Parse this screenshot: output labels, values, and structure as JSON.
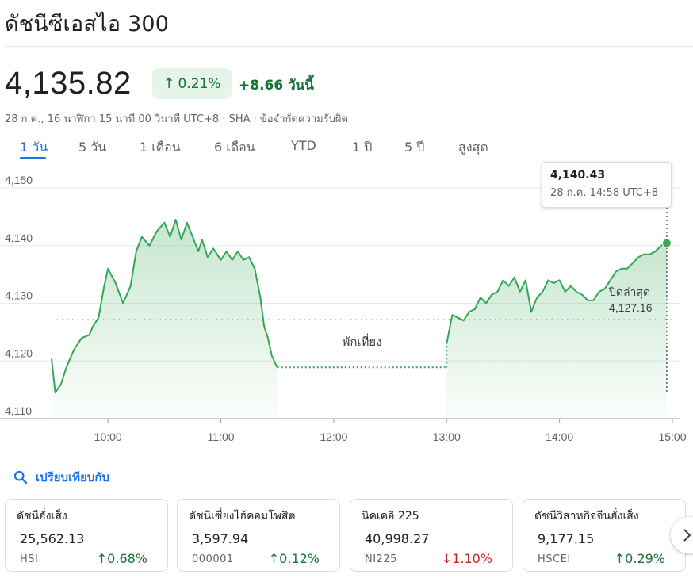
{
  "header": {
    "title": "ดัชนีซีเอสไอ 300"
  },
  "quote": {
    "price": "4,135.82",
    "pct_change": "0.21%",
    "abs_change": "+8.66 วันนี้",
    "meta_time": "28 ก.ค., 16 นาฬิกา 15 นาที 00 วินาที UTC+8 · SHA · ",
    "meta_disclaimer": "ข้อจำกัดความรับผิด"
  },
  "range_tabs": [
    "1 วัน",
    "5 วัน",
    "1 เดือน",
    "6 เดือน",
    "YTD",
    "1 ปี",
    "5 ปี",
    "สูงสุด"
  ],
  "active_tab": "1 วัน",
  "tooltip": {
    "value": "4,140.43",
    "time": "28 ก.ค. 14:58 UTC+8"
  },
  "chart_labels": {
    "lunch_break": "พักเที่ยง",
    "prev_close_label": "ปิดล่าสุด",
    "prev_close_value": "4,127.16"
  },
  "chart_data": {
    "type": "line",
    "y_ticks": [
      "4,150",
      "4,140",
      "4,130",
      "4,120",
      "4,110"
    ],
    "x_ticks": [
      "10:00",
      "11:00",
      "12:00",
      "13:00",
      "14:00",
      "15:00"
    ],
    "ylim": [
      4110,
      4150
    ],
    "xlim": [
      "09:30",
      "15:00"
    ],
    "previous_close": 4127.16,
    "grid": true,
    "color": "#34a853",
    "morning_series": [
      [
        "09:30",
        4120.4
      ],
      [
        "09:32",
        4114.5
      ],
      [
        "09:35",
        4116.0
      ],
      [
        "09:38",
        4119.0
      ],
      [
        "09:42",
        4122.0
      ],
      [
        "09:46",
        4124.0
      ],
      [
        "09:50",
        4124.5
      ],
      [
        "09:52",
        4126.0
      ],
      [
        "09:55",
        4127.5
      ],
      [
        "09:58",
        4133.0
      ],
      [
        "10:00",
        4136.0
      ],
      [
        "10:04",
        4133.5
      ],
      [
        "10:08",
        4130.0
      ],
      [
        "10:12",
        4133.0
      ],
      [
        "10:15",
        4139.0
      ],
      [
        "10:18",
        4141.5
      ],
      [
        "10:22",
        4140.0
      ],
      [
        "10:26",
        4142.5
      ],
      [
        "10:30",
        4144.0
      ],
      [
        "10:33",
        4141.5
      ],
      [
        "10:36",
        4144.5
      ],
      [
        "10:39",
        4141.0
      ],
      [
        "10:42",
        4144.0
      ],
      [
        "10:45",
        4141.5
      ],
      [
        "10:48",
        4139.0
      ],
      [
        "10:50",
        4141.0
      ],
      [
        "10:53",
        4138.0
      ],
      [
        "10:56",
        4139.5
      ],
      [
        "11:00",
        4137.5
      ],
      [
        "11:03",
        4139.0
      ],
      [
        "11:06",
        4137.5
      ],
      [
        "11:09",
        4139.0
      ],
      [
        "11:12",
        4137.5
      ],
      [
        "11:15",
        4138.0
      ],
      [
        "11:18",
        4136.0
      ],
      [
        "11:21",
        4131.0
      ],
      [
        "11:23",
        4126.0
      ],
      [
        "11:25",
        4124.0
      ],
      [
        "11:27",
        4121.0
      ],
      [
        "11:29",
        4119.5
      ],
      [
        "11:30",
        4118.9
      ]
    ],
    "afternoon_series": [
      [
        "13:00",
        4123.0
      ],
      [
        "13:03",
        4128.0
      ],
      [
        "13:06",
        4127.5
      ],
      [
        "13:09",
        4127.0
      ],
      [
        "13:12",
        4128.5
      ],
      [
        "13:15",
        4129.0
      ],
      [
        "13:18",
        4131.0
      ],
      [
        "13:21",
        4130.0
      ],
      [
        "13:24",
        4131.5
      ],
      [
        "13:27",
        4132.0
      ],
      [
        "13:30",
        4134.0
      ],
      [
        "13:33",
        4133.0
      ],
      [
        "13:36",
        4134.5
      ],
      [
        "13:39",
        4132.0
      ],
      [
        "13:42",
        4134.0
      ],
      [
        "13:45",
        4128.5
      ],
      [
        "13:48",
        4131.0
      ],
      [
        "13:51",
        4132.0
      ],
      [
        "13:54",
        4134.0
      ],
      [
        "13:57",
        4133.5
      ],
      [
        "14:00",
        4134.0
      ],
      [
        "14:03",
        4132.0
      ],
      [
        "14:06",
        4133.0
      ],
      [
        "14:09",
        4132.0
      ],
      [
        "14:12",
        4131.5
      ],
      [
        "14:15",
        4130.5
      ],
      [
        "14:18",
        4130.5
      ],
      [
        "14:21",
        4132.0
      ],
      [
        "14:24",
        4132.5
      ],
      [
        "14:27",
        4134.0
      ],
      [
        "14:30",
        4135.5
      ],
      [
        "14:33",
        4136.0
      ],
      [
        "14:36",
        4136.0
      ],
      [
        "14:39",
        4137.0
      ],
      [
        "14:42",
        4138.0
      ],
      [
        "14:45",
        4138.5
      ],
      [
        "14:48",
        4138.5
      ],
      [
        "14:51",
        4139.0
      ],
      [
        "14:54",
        4140.0
      ],
      [
        "14:57",
        4140.43
      ]
    ]
  },
  "compare": {
    "label": "เปรียบเทียบกับ"
  },
  "compare_cards": [
    {
      "name": "ดัชนีฮั่งเส็ง",
      "value": "25,562.13",
      "symbol": "HSI",
      "change": "0.68%",
      "direction": "up"
    },
    {
      "name": "ดัชนีเซี่ยงไฮ้คอมโพสิต",
      "value": "3,597.94",
      "symbol": "000001",
      "change": "0.12%",
      "direction": "up"
    },
    {
      "name": "นิคเคอิ 225",
      "value": "40,998.27",
      "symbol": "NI225",
      "change": "1.10%",
      "direction": "down"
    },
    {
      "name": "ดัชนีวิสาหกิจจีนฮั่งเส็ง",
      "value": "9,177.15",
      "symbol": "HSCEI",
      "change": "0.29%",
      "direction": "up"
    }
  ],
  "icons": {
    "up": "arrow-up-icon",
    "down": "arrow-down-icon",
    "search": "search-icon",
    "next": "chevron-right-icon"
  },
  "colors": {
    "up": "#137333",
    "down": "#c5221f",
    "accent": "#1a73e8",
    "line": "#34a853"
  }
}
